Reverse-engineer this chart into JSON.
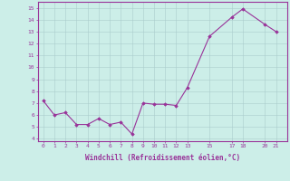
{
  "x": [
    0,
    1,
    2,
    3,
    4,
    5,
    6,
    7,
    8,
    9,
    10,
    11,
    12,
    13,
    15,
    17,
    18,
    20,
    21
  ],
  "y": [
    7.2,
    6.0,
    6.2,
    5.2,
    5.2,
    5.7,
    5.2,
    5.4,
    4.4,
    7.0,
    6.9,
    6.9,
    6.8,
    8.3,
    12.6,
    14.2,
    14.9,
    13.6,
    13.0
  ],
  "xticks": [
    0,
    1,
    2,
    3,
    4,
    5,
    6,
    7,
    8,
    9,
    10,
    11,
    12,
    13,
    15,
    17,
    18,
    20,
    21
  ],
  "yticks": [
    4,
    5,
    6,
    7,
    8,
    9,
    10,
    11,
    12,
    13,
    14,
    15
  ],
  "ylim": [
    3.8,
    15.5
  ],
  "xlim": [
    -0.5,
    22
  ],
  "xlabel": "Windchill (Refroidissement éolien,°C)",
  "line_color": "#993399",
  "marker": "D",
  "marker_size": 1.8,
  "bg_color": "#cceee8",
  "grid_color": "#aacccc",
  "spine_color": "#993399"
}
